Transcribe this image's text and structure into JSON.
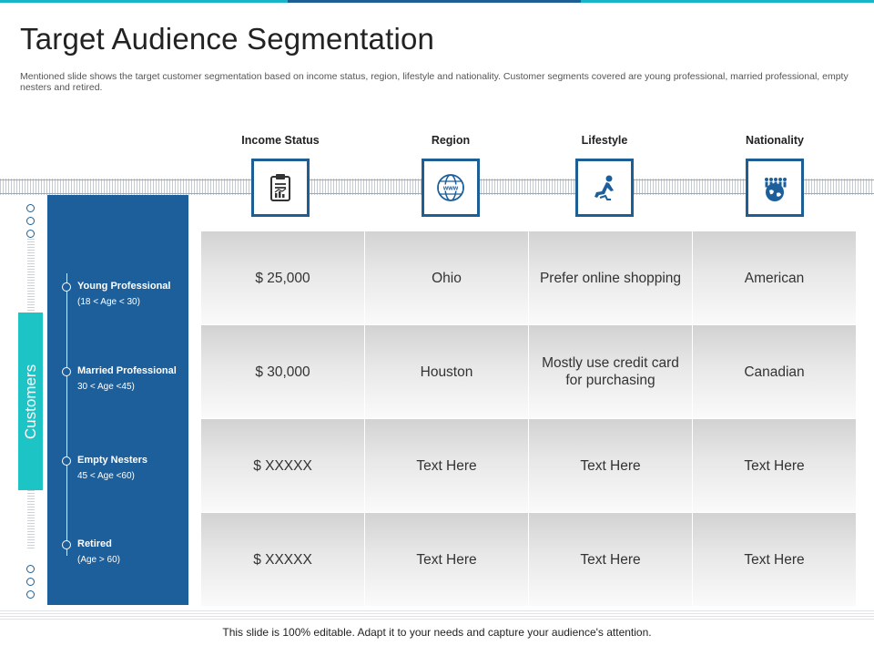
{
  "title": "Target Audience Segmentation",
  "subtitle": "Mentioned slide shows the target customer segmentation based on income status, region, lifestyle and nationality. Customer segments covered are young professional, married professional, empty nesters and retired.",
  "columns": [
    {
      "label": "Income Status",
      "icon": "clipboard-chart-icon"
    },
    {
      "label": "Region",
      "icon": "globe-www-icon"
    },
    {
      "label": "Lifestyle",
      "icon": "person-relaxing-icon"
    },
    {
      "label": "Nationality",
      "icon": "people-globe-icon"
    }
  ],
  "side_tab": "Customers",
  "segments": [
    {
      "name": "Young Professional",
      "age": "(18 < Age < 30)"
    },
    {
      "name": "Married Professional",
      "age": "30 < Age <45)"
    },
    {
      "name": "Empty Nesters",
      "age": "45 < Age <60)"
    },
    {
      "name": "Retired",
      "age": "(Age > 60)"
    }
  ],
  "rows": [
    [
      "$ 25,000",
      "Ohio",
      "Prefer online shopping",
      "American"
    ],
    [
      "$ 30,000",
      "Houston",
      "Mostly use credit card for purchasing",
      "Canadian"
    ],
    [
      "$ XXXXX",
      "Text Here",
      "Text Here",
      "Text Here"
    ],
    [
      "$ XXXXX",
      "Text Here",
      "Text Here",
      "Text Here"
    ]
  ],
  "footer": "This slide is 100% editable. Adapt it to your needs and capture your audience's attention.",
  "colors": {
    "accent_teal": "#1cc4c6",
    "accent_blue": "#1d5f9a",
    "top_bar_teal": "#18b5c9"
  }
}
